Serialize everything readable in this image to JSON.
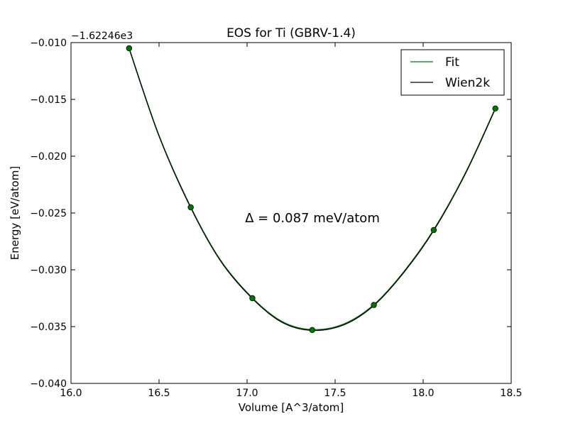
{
  "chart_data": {
    "type": "scatter",
    "title": "EOS for Ti (GBRV-1.4)",
    "xlabel": "Volume [A^3/atom]",
    "ylabel": "Energy [eV/atom]",
    "y_offset_label": "−1.62246e3",
    "xlim": [
      16.0,
      18.5
    ],
    "ylim": [
      -0.04,
      -0.01
    ],
    "x_ticks": [
      16.0,
      16.5,
      17.0,
      17.5,
      18.0,
      18.5
    ],
    "x_tick_labels": [
      "16.0",
      "16.5",
      "17.0",
      "17.5",
      "18.0",
      "18.5"
    ],
    "y_ticks": [
      -0.04,
      -0.035,
      -0.03,
      -0.025,
      -0.02,
      -0.015,
      -0.01
    ],
    "y_tick_labels": [
      "−0.040",
      "−0.035",
      "−0.030",
      "−0.025",
      "−0.020",
      "−0.015",
      "−0.010"
    ],
    "grid": false,
    "legend_position": "top-right",
    "annotation": "Δ = 0.087 meV/atom",
    "points": {
      "x": [
        16.33,
        16.68,
        17.03,
        17.37,
        17.72,
        18.06,
        18.41
      ],
      "y": [
        -0.0105,
        -0.0245,
        -0.0325,
        -0.0353,
        -0.0331,
        -0.0265,
        -0.0158
      ],
      "color": "#007700"
    },
    "series": [
      {
        "name": "Fit",
        "color": "#007700",
        "x": [
          16.33,
          16.5,
          16.68,
          16.85,
          17.03,
          17.2,
          17.37,
          17.55,
          17.72,
          17.89,
          18.06,
          18.24,
          18.41
        ],
        "y": [
          -0.0105,
          -0.0182,
          -0.0245,
          -0.0292,
          -0.0325,
          -0.0346,
          -0.0353,
          -0.0348,
          -0.0331,
          -0.0302,
          -0.0265,
          -0.0215,
          -0.0158
        ]
      },
      {
        "name": "Wien2k",
        "color": "#000000",
        "x": [
          16.33,
          16.5,
          16.68,
          16.85,
          17.03,
          17.2,
          17.37,
          17.55,
          17.72,
          17.89,
          18.06,
          18.24,
          18.41
        ],
        "y": [
          -0.0105,
          -0.0182,
          -0.0245,
          -0.0292,
          -0.0325,
          -0.0346,
          -0.0353,
          -0.0348,
          -0.0331,
          -0.0302,
          -0.0265,
          -0.0215,
          -0.0158
        ]
      }
    ]
  }
}
